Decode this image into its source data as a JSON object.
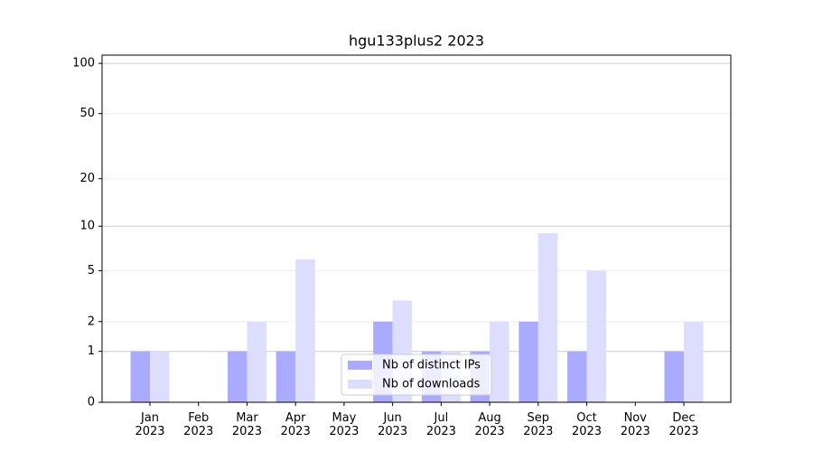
{
  "chart_data": {
    "type": "bar",
    "title": "hgu133plus2 2023",
    "categories": [
      "Jan 2023",
      "Feb 2023",
      "Mar 2023",
      "Apr 2023",
      "May 2023",
      "Jun 2023",
      "Jul 2023",
      "Aug 2023",
      "Sep 2023",
      "Oct 2023",
      "Nov 2023",
      "Dec 2023"
    ],
    "series": [
      {
        "name": "Nb of distinct IPs",
        "color": "#aaaaff",
        "values": [
          1,
          0,
          1,
          1,
          0,
          2,
          1,
          1,
          2,
          1,
          0,
          1
        ]
      },
      {
        "name": "Nb of downloads",
        "color": "#ddddff",
        "values": [
          1,
          0,
          2,
          6,
          0,
          3,
          1,
          2,
          9,
          5,
          0,
          2
        ]
      }
    ],
    "yscale": "log1p",
    "ylim": [
      0,
      112
    ],
    "yticks": [
      0,
      1,
      2,
      5,
      10,
      20,
      50,
      100
    ],
    "grid": true,
    "legend": "lower center"
  }
}
